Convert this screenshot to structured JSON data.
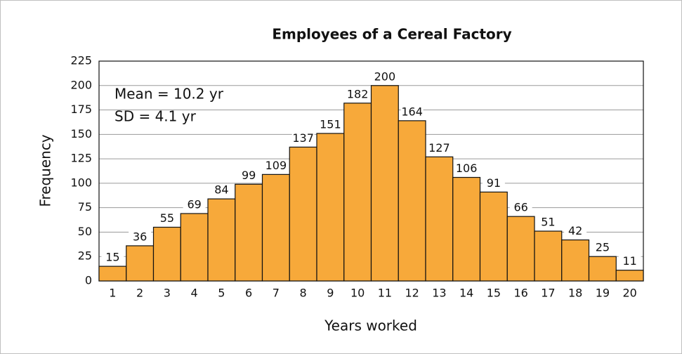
{
  "chart_data": {
    "type": "bar",
    "title": "Employees of a Cereal Factory",
    "x_label": "Years worked",
    "y_label": "Frequency",
    "annotations": [
      "Mean = 10.2 yr",
      "SD = 4.1 yr"
    ],
    "categories": [
      "1",
      "2",
      "3",
      "4",
      "5",
      "6",
      "7",
      "8",
      "9",
      "10",
      "11",
      "12",
      "13",
      "14",
      "15",
      "16",
      "17",
      "18",
      "19",
      "20"
    ],
    "values": [
      15,
      36,
      55,
      69,
      84,
      99,
      109,
      137,
      151,
      182,
      200,
      164,
      127,
      106,
      91,
      66,
      51,
      42,
      25,
      11
    ],
    "color": "#f7a93a",
    "ylim": [
      0,
      225
    ],
    "yticks": [
      0,
      25,
      50,
      75,
      100,
      125,
      150,
      175,
      200,
      225
    ],
    "grid": true
  }
}
